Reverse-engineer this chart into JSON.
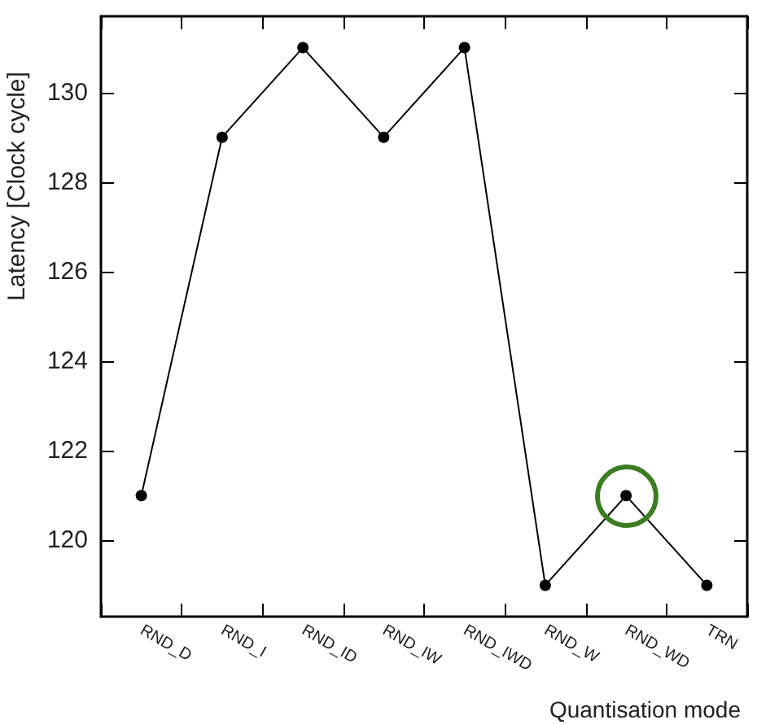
{
  "chart_data": {
    "type": "line",
    "xlabel": "Quantisation mode",
    "ylabel": "Latency [Clock cycle]",
    "categories": [
      "RND_D",
      "RND_I",
      "RND_ID",
      "RND_IW",
      "RND_IWD",
      "RND_W",
      "RND_WD",
      "TRN"
    ],
    "series": [
      {
        "color": "#000000",
        "values": [
          121,
          129,
          131,
          129,
          131,
          119,
          121,
          119
        ]
      }
    ],
    "ylim": [
      118.3,
      131.7
    ],
    "yticks": [
      120,
      122,
      124,
      126,
      128,
      130
    ],
    "marker": "circle",
    "line_style": "solid",
    "grid": false,
    "annotations": [
      {
        "x": "RND_WD"
      }
    ]
  }
}
